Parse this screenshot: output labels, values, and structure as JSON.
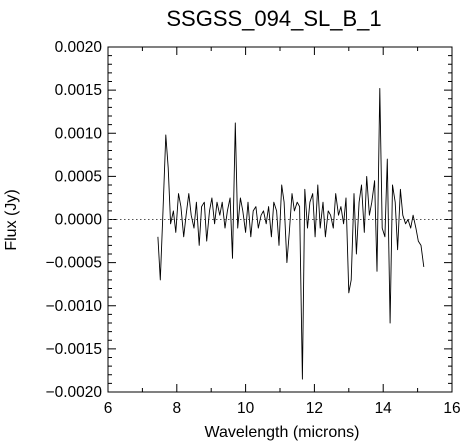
{
  "chart_data": {
    "type": "line",
    "title": "SSGSS_094_SL_B_1",
    "xlabel": "Wavelength (microns)",
    "ylabel": "Flux (Jy)",
    "xlim": [
      6,
      16
    ],
    "ylim": [
      -0.002,
      0.002
    ],
    "x_ticks": [
      "6",
      "8",
      "10",
      "12",
      "14",
      "16"
    ],
    "y_ticks": [
      "−0.0020",
      "−0.0015",
      "−0.0010",
      "−0.0005",
      "0.0000",
      "0.0005",
      "0.0010",
      "0.0015",
      "0.0020"
    ],
    "zero_line": "dotted",
    "grid": false,
    "series": [
      {
        "color": "#000000",
        "x": [
          7.45,
          7.52,
          7.6,
          7.68,
          7.75,
          7.82,
          7.9,
          7.97,
          8.05,
          8.12,
          8.2,
          8.27,
          8.35,
          8.42,
          8.5,
          8.57,
          8.65,
          8.72,
          8.8,
          8.87,
          8.95,
          9.02,
          9.1,
          9.17,
          9.25,
          9.32,
          9.4,
          9.47,
          9.55,
          9.62,
          9.7,
          9.77,
          9.85,
          9.92,
          10.0,
          10.07,
          10.15,
          10.22,
          10.3,
          10.37,
          10.45,
          10.52,
          10.6,
          10.67,
          10.75,
          10.82,
          10.9,
          10.97,
          11.05,
          11.12,
          11.2,
          11.27,
          11.35,
          11.42,
          11.5,
          11.57,
          11.65,
          11.72,
          11.8,
          11.87,
          11.95,
          12.02,
          12.1,
          12.17,
          12.25,
          12.32,
          12.4,
          12.47,
          12.55,
          12.62,
          12.7,
          12.77,
          12.85,
          12.92,
          13.0,
          13.07,
          13.15,
          13.22,
          13.3,
          13.37,
          13.45,
          13.52,
          13.6,
          13.67,
          13.75,
          13.82,
          13.9,
          13.97,
          14.05,
          14.12,
          14.2,
          14.27,
          14.35,
          14.42,
          14.5,
          14.57,
          14.65,
          14.72,
          14.8,
          14.87,
          14.95,
          15.02,
          15.1,
          15.18
        ],
        "y": [
          -0.0002,
          -0.0007,
          0.0001,
          0.00098,
          0.0006,
          -5e-05,
          0.0001,
          -0.00015,
          0.0003,
          0.00015,
          -0.0002,
          5e-05,
          0.0003,
          5e-05,
          -0.0001,
          0.0002,
          -0.0003,
          0.00015,
          0.0002,
          -0.00025,
          0.0001,
          0.00025,
          -5e-05,
          0.0002,
          5e-05,
          0.0002,
          -0.0001,
          0.0001,
          0.00025,
          -0.00045,
          0.00112,
          -0.0001,
          0.00025,
          0.0001,
          -0.00015,
          0.0002,
          -0.0002,
          0.0001,
          0.00015,
          -0.0001,
          5e-05,
          0.0001,
          -5e-05,
          0.00015,
          -0.0002,
          0.0002,
          0.0001,
          -0.0003,
          0.0004,
          0.0002,
          -0.0005,
          -0.00015,
          0.0003,
          0.0001,
          0.0002,
          0.00015,
          -0.00185,
          0.00035,
          -0.0001,
          0.0002,
          0.0003,
          -0.0002,
          0.0004,
          -0.0001,
          0.0002,
          -0.0002,
          0.0001,
          5e-05,
          -0.0001,
          0.0003,
          5e-05,
          0.00015,
          -5e-05,
          0.00025,
          -0.00085,
          -0.0007,
          0.0003,
          -0.0004,
          0.0002,
          0.0004,
          -0.00015,
          0.0005,
          5e-05,
          0.0002,
          0.00045,
          -0.0006,
          0.00152,
          -0.0001,
          -0.0002,
          0.0007,
          -0.0012,
          0.0004,
          0.0002,
          -0.00035,
          0.00035,
          5e-05,
          -5e-05,
          0.0,
          -0.0001,
          5e-05,
          -0.0001,
          -0.00025,
          -0.0003,
          -0.00055
        ]
      }
    ]
  }
}
